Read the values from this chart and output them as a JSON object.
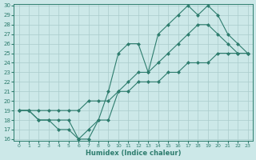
{
  "xlabel": "Humidex (Indice chaleur)",
  "x": [
    0,
    1,
    2,
    3,
    4,
    5,
    6,
    7,
    8,
    9,
    10,
    11,
    12,
    13,
    14,
    15,
    16,
    17,
    18,
    19,
    20,
    21,
    22,
    23
  ],
  "line_upper": [
    19,
    19,
    18,
    18,
    18,
    18,
    16,
    17,
    18,
    21,
    25,
    26,
    26,
    23,
    27,
    28,
    29,
    30,
    29,
    30,
    29,
    27,
    26,
    25
  ],
  "line_lower": [
    19,
    19,
    18,
    18,
    17,
    17,
    16,
    16,
    18,
    18,
    21,
    22,
    23,
    23,
    24,
    25,
    26,
    27,
    28,
    28,
    27,
    26,
    25,
    25
  ],
  "line_diag": [
    19,
    19,
    19,
    19,
    19,
    19,
    19,
    20,
    20,
    20,
    21,
    21,
    22,
    22,
    22,
    23,
    23,
    24,
    24,
    24,
    25,
    25,
    25,
    25
  ],
  "color": "#2e7d6e",
  "bg_color": "#cce8e8",
  "grid_color": "#aacccc",
  "ylim": [
    16,
    30
  ],
  "xlim": [
    0,
    23
  ],
  "yticks": [
    16,
    17,
    18,
    19,
    20,
    21,
    22,
    23,
    24,
    25,
    26,
    27,
    28,
    29,
    30
  ],
  "xticks": [
    0,
    1,
    2,
    3,
    4,
    5,
    6,
    7,
    8,
    9,
    10,
    11,
    12,
    13,
    14,
    15,
    16,
    17,
    18,
    19,
    20,
    21,
    22,
    23
  ]
}
